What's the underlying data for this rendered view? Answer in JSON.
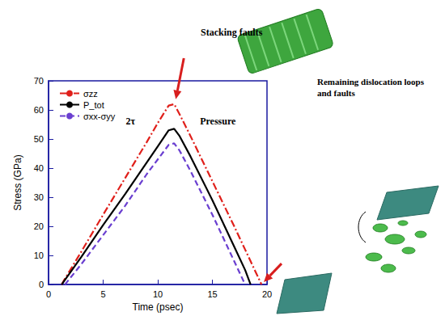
{
  "chart_data": {
    "type": "line",
    "xlabel": "Time (psec)",
    "ylabel": "Stress (GPa)",
    "xlim": [
      0,
      20
    ],
    "xticks": [
      0,
      5,
      10,
      15,
      20
    ],
    "ylim": [
      0,
      70
    ],
    "yticks": [
      0,
      10,
      20,
      30,
      40,
      50,
      60,
      70
    ],
    "legend": "top-left",
    "x": [
      1.2,
      1.5,
      3,
      5,
      7,
      9,
      10,
      11,
      11.5,
      12,
      13,
      15,
      17,
      18,
      18.5,
      19,
      19.5
    ],
    "series": [
      {
        "name": "σzz",
        "color": "#e0201b",
        "line_style": "dashdot",
        "values": [
          0,
          2,
          11.3,
          24,
          36.5,
          49,
          55.5,
          61.5,
          62,
          58.5,
          51,
          35.5,
          20,
          12,
          8,
          4,
          0
        ]
      },
      {
        "name": "P_tot",
        "color": "#000000",
        "line_style": "solid",
        "values": [
          0,
          1.6,
          9.5,
          20.5,
          31,
          42,
          47.5,
          53,
          53.5,
          51,
          44,
          29,
          13,
          5,
          0,
          null,
          null
        ]
      },
      {
        "name": "σxx-σyy",
        "color": "#6a3fd0",
        "line_style": "dashed",
        "values": [
          null,
          0,
          7,
          17,
          27,
          38,
          43,
          48,
          48.5,
          46,
          39,
          24,
          8,
          0,
          null,
          null,
          null
        ]
      }
    ],
    "annotations": [
      {
        "text": "2τ",
        "x": 7.5,
        "y": 56
      },
      {
        "text": "Pressure",
        "x": 15.5,
        "y": 56
      }
    ],
    "image_labels": [
      "Stacking faults",
      "Remaining dislocation loops and faults"
    ]
  }
}
